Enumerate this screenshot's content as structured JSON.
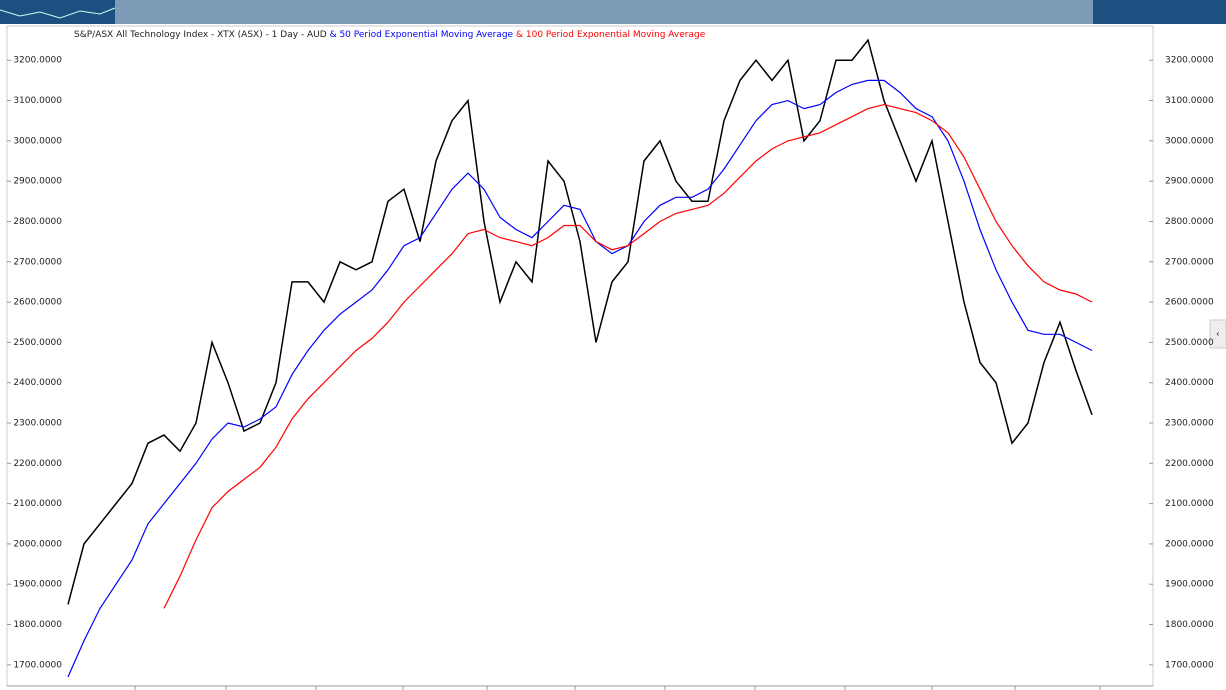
{
  "chart_data": {
    "type": "line",
    "title": "S&P/ASX All Technology Index - XTX (ASX) - 1 Day - AUD",
    "categories": [
      null,
      null,
      null,
      null,
      null,
      null,
      null,
      null,
      null,
      null,
      null,
      null,
      null,
      null,
      null,
      null,
      null,
      null,
      null,
      null,
      null,
      null,
      null,
      null,
      null,
      null,
      null,
      null,
      null,
      null,
      null,
      null,
      null,
      null,
      null,
      null,
      null,
      null,
      null,
      null,
      null,
      null,
      null,
      null,
      null,
      null,
      null,
      null,
      null,
      null,
      null,
      null,
      null,
      null,
      null,
      null,
      null,
      null,
      null,
      null,
      null,
      null,
      null,
      null,
      null
    ],
    "series": [
      {
        "name": "S&P/ASX All Technology Index",
        "color": "#000000",
        "values": [
          1850,
          2000,
          2050,
          2100,
          2150,
          2250,
          2270,
          2230,
          2300,
          2500,
          2400,
          2280,
          2300,
          2400,
          2650,
          2650,
          2600,
          2700,
          2680,
          2700,
          2850,
          2880,
          2750,
          2950,
          3050,
          3100,
          2800,
          2600,
          2700,
          2650,
          2950,
          2900,
          2750,
          2500,
          2650,
          2700,
          2950,
          3000,
          2900,
          2850,
          2850,
          3050,
          3150,
          3200,
          3150,
          3200,
          3000,
          3050,
          3200,
          3200,
          3250,
          3100,
          3000,
          2900,
          3000,
          2800,
          2600,
          2450,
          2400,
          2250,
          2300,
          2450,
          2550,
          2430,
          2320
        ]
      },
      {
        "name": "& 50 Period Exponential Moving Average",
        "color": "#0000ff",
        "values": [
          1670,
          1760,
          1840,
          1900,
          1960,
          2050,
          2100,
          2150,
          2200,
          2260,
          2300,
          2290,
          2310,
          2340,
          2420,
          2480,
          2530,
          2570,
          2600,
          2630,
          2680,
          2740,
          2760,
          2820,
          2880,
          2920,
          2880,
          2810,
          2780,
          2760,
          2800,
          2840,
          2830,
          2750,
          2720,
          2740,
          2800,
          2840,
          2860,
          2860,
          2880,
          2930,
          2990,
          3050,
          3090,
          3100,
          3080,
          3090,
          3120,
          3140,
          3150,
          3150,
          3120,
          3080,
          3060,
          3000,
          2900,
          2780,
          2680,
          2600,
          2530,
          2520,
          2520,
          2500,
          2480
        ]
      },
      {
        "name": "& 100 Period Exponential Moving Average",
        "color": "#ff0000",
        "values": [
          null,
          null,
          null,
          null,
          null,
          null,
          1840,
          1920,
          2010,
          2090,
          2130,
          2160,
          2190,
          2240,
          2310,
          2360,
          2400,
          2440,
          2480,
          2510,
          2550,
          2600,
          2640,
          2680,
          2720,
          2770,
          2780,
          2760,
          2750,
          2740,
          2760,
          2790,
          2790,
          2750,
          2730,
          2740,
          2770,
          2800,
          2820,
          2830,
          2840,
          2870,
          2910,
          2950,
          2980,
          3000,
          3010,
          3020,
          3040,
          3060,
          3080,
          3090,
          3080,
          3070,
          3050,
          3020,
          2960,
          2880,
          2800,
          2740,
          2690,
          2650,
          2630,
          2620,
          2600
        ]
      }
    ],
    "ylim": [
      1650,
      3280
    ],
    "yticks": [
      {
        "value": 1700,
        "label": "1700.0000"
      },
      {
        "value": 1800,
        "label": "1800.0000"
      },
      {
        "value": 1900,
        "label": "1900.0000"
      },
      {
        "value": 2000,
        "label": "2000.0000"
      },
      {
        "value": 2100,
        "label": "2100.0000"
      },
      {
        "value": 2200,
        "label": "2200.0000"
      },
      {
        "value": 2300,
        "label": "2300.0000"
      },
      {
        "value": 2400,
        "label": "2400.0000"
      },
      {
        "value": 2500,
        "label": "2500.0000"
      },
      {
        "value": 2600,
        "label": "2600.0000"
      },
      {
        "value": 2700,
        "label": "2700.0000"
      },
      {
        "value": 2800,
        "label": "2800.0000"
      },
      {
        "value": 2900,
        "label": "2900.0000"
      },
      {
        "value": 3000,
        "label": "3000.0000"
      },
      {
        "value": 3100,
        "label": "3100.0000"
      },
      {
        "value": 3200,
        "label": "3200.0000"
      }
    ],
    "grid": false
  }
}
